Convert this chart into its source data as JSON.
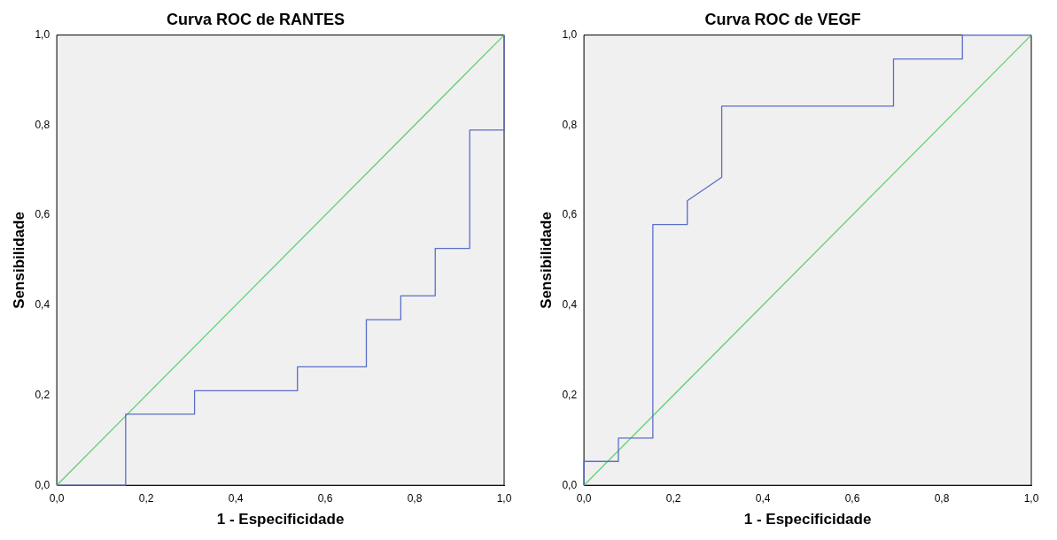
{
  "chart_data": [
    {
      "type": "line",
      "title": "Curva ROC de RANTES",
      "xlabel": "1 - Especificidade",
      "ylabel": "Sensibilidade",
      "xlim": [
        0,
        1
      ],
      "ylim": [
        0,
        1
      ],
      "xticks": [
        {
          "value": 0,
          "label": "0,0"
        },
        {
          "value": 0.2,
          "label": "0,2"
        },
        {
          "value": 0.4,
          "label": "0,4"
        },
        {
          "value": 0.6,
          "label": "0,6"
        },
        {
          "value": 0.8,
          "label": "0,8"
        },
        {
          "value": 1,
          "label": "1,0"
        }
      ],
      "yticks": [
        {
          "value": 0,
          "label": "0,0"
        },
        {
          "value": 0.2,
          "label": "0,2"
        },
        {
          "value": 0.4,
          "label": "0,4"
        },
        {
          "value": 0.6,
          "label": "0,6"
        },
        {
          "value": 0.8,
          "label": "0,8"
        },
        {
          "value": 1,
          "label": "1,0"
        }
      ],
      "grid": false,
      "legend": false,
      "marker": "none",
      "series": [
        {
          "type": "line",
          "color": "#5a6ec8",
          "x": [
            0,
            0.154,
            0.154,
            0.308,
            0.308,
            0.538,
            0.538,
            0.692,
            0.692,
            0.769,
            0.769,
            0.846,
            0.846,
            0.923,
            0.923,
            1,
            1
          ],
          "values": [
            0,
            0,
            0.158,
            0.158,
            0.21,
            0.21,
            0.263,
            0.263,
            0.368,
            0.368,
            0.421,
            0.421,
            0.526,
            0.526,
            0.789,
            0.789,
            1
          ]
        },
        {
          "type": "line",
          "color": "#62cf72",
          "x": [
            0,
            1
          ],
          "values": [
            0,
            1
          ]
        }
      ]
    },
    {
      "type": "line",
      "title": "Curva ROC de VEGF",
      "xlabel": "1 - Especificidade",
      "ylabel": "Sensibilidade",
      "xlim": [
        0,
        1
      ],
      "ylim": [
        0,
        1
      ],
      "xticks": [
        {
          "value": 0,
          "label": "0,0"
        },
        {
          "value": 0.2,
          "label": "0,2"
        },
        {
          "value": 0.4,
          "label": "0,4"
        },
        {
          "value": 0.6,
          "label": "0,6"
        },
        {
          "value": 0.8,
          "label": "0,8"
        },
        {
          "value": 1,
          "label": "1,0"
        }
      ],
      "yticks": [
        {
          "value": 0,
          "label": "0,0"
        },
        {
          "value": 0.2,
          "label": "0,2"
        },
        {
          "value": 0.4,
          "label": "0,4"
        },
        {
          "value": 0.6,
          "label": "0,6"
        },
        {
          "value": 0.8,
          "label": "0,8"
        },
        {
          "value": 1,
          "label": "1,0"
        }
      ],
      "grid": false,
      "legend": false,
      "marker": "none",
      "series": [
        {
          "type": "line",
          "color": "#5a6ec8",
          "x": [
            0,
            0,
            0.077,
            0.077,
            0.154,
            0.154,
            0.231,
            0.231,
            0.308,
            0.308,
            0.692,
            0.692,
            0.846,
            0.846,
            1
          ],
          "values": [
            0,
            0.053,
            0.053,
            0.105,
            0.105,
            0.579,
            0.579,
            0.632,
            0.684,
            0.842,
            0.842,
            0.947,
            0.947,
            1,
            1
          ]
        },
        {
          "type": "line",
          "color": "#62cf72",
          "x": [
            0,
            1
          ],
          "values": [
            0,
            1
          ]
        }
      ]
    }
  ]
}
